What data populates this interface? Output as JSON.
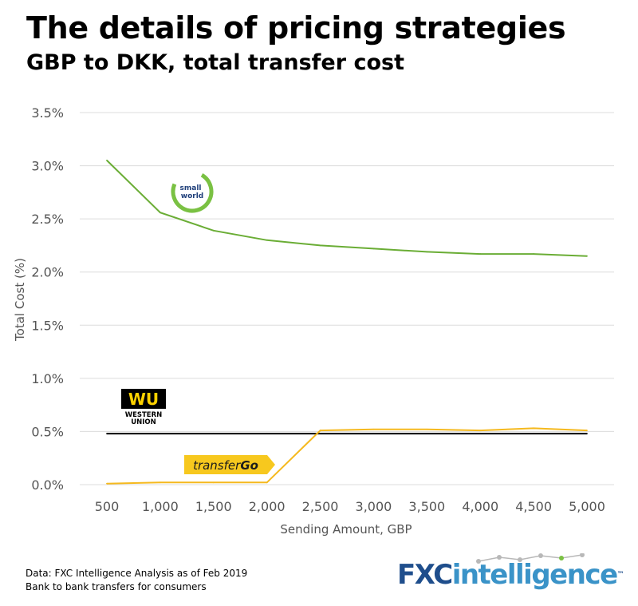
{
  "chart_data": {
    "type": "line",
    "title": "The details of pricing strategies",
    "subtitle": "GBP to DKK, total transfer cost",
    "xlabel": "Sending Amount, GBP",
    "ylabel": "Total Cost (%)",
    "x": [
      500,
      1000,
      1500,
      2000,
      2500,
      3000,
      3500,
      4000,
      4500,
      5000
    ],
    "x_tick_labels": [
      "500",
      "1,000",
      "1,500",
      "2,000",
      "2,500",
      "3,000",
      "3,500",
      "4,000",
      "4,500",
      "5,000"
    ],
    "y_ticks": [
      0,
      0.5,
      1.0,
      1.5,
      2.0,
      2.5,
      3.0,
      3.5
    ],
    "y_tick_labels": [
      "0.0%",
      "0.5%",
      "1.0%",
      "1.5%",
      "2.0%",
      "2.5%",
      "3.0%",
      "3.5%"
    ],
    "ylim": [
      0,
      3.5
    ],
    "grid": true,
    "series": [
      {
        "name": "small world",
        "color": "#6aad35",
        "values": [
          3.05,
          2.56,
          2.39,
          2.3,
          2.25,
          2.22,
          2.19,
          2.17,
          2.17,
          2.15
        ]
      },
      {
        "name": "WESTERN UNION",
        "color": "#000000",
        "values": [
          0.48,
          0.48,
          0.48,
          0.48,
          0.48,
          0.48,
          0.48,
          0.48,
          0.48,
          0.48
        ]
      },
      {
        "name": "transferGo",
        "color": "#f5b91e",
        "values": [
          0.01,
          0.02,
          0.02,
          0.02,
          0.51,
          0.52,
          0.52,
          0.51,
          0.53,
          0.51
        ]
      }
    ]
  },
  "logos": {
    "smallworld": {
      "line1": "small",
      "line2": "world",
      "ring_color": "#7ac143",
      "text_color": "#1f3f7a"
    },
    "westernunion": {
      "mark": "WU",
      "line1": "WESTERN",
      "line2": "UNION",
      "bg": "#000000",
      "fg": "#ffd200"
    },
    "transfergo": {
      "text_italic": "transfer",
      "text_bold": "Go",
      "bg": "#f7c81e"
    }
  },
  "footer": {
    "line1": "Data: FXC Intelligence Analysis as of Feb 2019",
    "line2": "Bank to bank transfers for consumers"
  },
  "brand": {
    "part1": "FXC",
    "part2": "intelligence",
    "tm": "™"
  }
}
